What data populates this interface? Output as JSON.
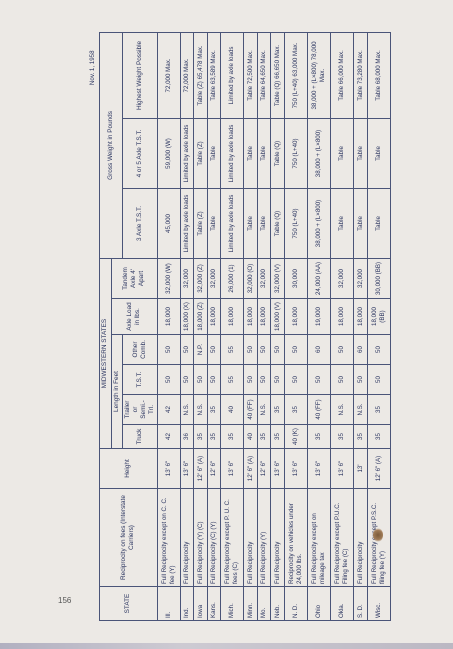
{
  "page_number": "156",
  "date": "Nov. 1, 1958",
  "headers": {
    "state": "STATE",
    "reciprocity": "Reciprocity on fees (Interstate Carriers)",
    "height": "Height",
    "section_title": "MIDWESTERN STATES",
    "length_group": "Length in Feet",
    "length_truck": "Truck",
    "length_trailer_semi": "Trailer or Semi.-Trl.",
    "length_tst": "T.S.T.",
    "length_other": "Other Comb.",
    "axle_load": "Axle Load in lbs.",
    "tandem": "Tandem Axle 4' Apart",
    "gross_group": "Gross Weight in Pounds",
    "gross_3axle": "3 Axle T.S.T.",
    "gross_4axle": "4 or 5 Axle T.S.T.",
    "gross_max": "Highest Weight Possible"
  },
  "rows": [
    {
      "state": "Ill.",
      "reciprocity": "Full Reciprocity except on C. C. fee (Y)",
      "height": "13' 6\"",
      "truck": "42",
      "trailer": "42",
      "tst": "50",
      "other": "50",
      "axle": "18,000",
      "tandem": "32,000 (W)",
      "g3": "45,000",
      "g4": "59,000 (W)",
      "gmax": "72,000 Max."
    },
    {
      "state": "Ind.",
      "reciprocity": "Full Reciprocity",
      "height": "13' 6\"",
      "truck": "36",
      "trailer": "N.S.",
      "tst": "50",
      "other": "50",
      "axle": "18,000 (X)",
      "tandem": "32,000",
      "g3": "Limited by axle loads",
      "g4": "Limited by axle loads",
      "gmax": "72,000 Max."
    },
    {
      "state": "Iowa",
      "reciprocity": "Full Reciprocity (Y) (C)",
      "height": "12' 6\" (A)",
      "truck": "35",
      "trailer": "N.S.",
      "tst": "50",
      "other": "N.P.",
      "axle": "18,000 (Z)",
      "tandem": "32,000 (Z)",
      "g3": "Table (Z)",
      "g4": "Table (Z)",
      "gmax": "Table (Z) 65,478 Max."
    },
    {
      "state": "Kans.",
      "reciprocity": "Full Reciprocity (C) (Y)",
      "height": "12' 6\"",
      "truck": "35",
      "trailer": "35",
      "tst": "50",
      "other": "50",
      "axle": "18,000",
      "tandem": "32,000",
      "g3": "Table",
      "g4": "Table",
      "gmax": "Table 63,589 Max."
    },
    {
      "state": "Mich.",
      "reciprocity": "Full Reciprocity except P. U. C. fees (C)",
      "height": "13' 6\"",
      "truck": "35",
      "trailer": "40",
      "tst": "55",
      "other": "55",
      "axle": "18,000",
      "tandem": "26,000 (1)",
      "g3": "Limited by axle loads",
      "g4": "Limited by axle loads",
      "gmax": "Limited by axle loads"
    },
    {
      "state": "Minn.",
      "reciprocity": "Full Reciprocity",
      "height": "12' 6\" (A)",
      "truck": "40",
      "trailer": "40 (FF)",
      "tst": "50",
      "other": "50",
      "axle": "18,000",
      "tandem": "32,000 (O)",
      "g3": "Table",
      "g4": "Table",
      "gmax": "Table 72,500 Max."
    },
    {
      "state": "Mo.",
      "reciprocity": "Full Reciprocity (Y)",
      "height": "12' 6\"",
      "truck": "35",
      "trailer": "N.S.",
      "tst": "50",
      "other": "50",
      "axle": "18,000",
      "tandem": "32,000",
      "g3": "Table",
      "g4": "Table",
      "gmax": "Table 64,650 Max."
    },
    {
      "state": "Neb.",
      "reciprocity": "Full Reciprocity",
      "height": "13' 6\"",
      "truck": "35",
      "trailer": "35",
      "tst": "50",
      "other": "50",
      "axle": "18,000 (V)",
      "tandem": "32,000 (V)",
      "g3": "Table (Q)",
      "g4": "Table (Q)",
      "gmax": "Table (Q) 66,650 Max."
    },
    {
      "state": "N. D.",
      "reciprocity": "Reciprocity on vehicles under 24,000 lbs.",
      "height": "13' 6\"",
      "truck": "40 (K)",
      "trailer": "35",
      "tst": "50",
      "other": "50",
      "axle": "18,000",
      "tandem": "30,000",
      "g3": "750 (L+40)",
      "g4": "750 (L+40)",
      "gmax": "750 (L+40) 63,000 Max."
    },
    {
      "state": "Ohio",
      "reciprocity": "Full Reciprocity except on mileage tax",
      "height": "13' 6\"",
      "truck": "35",
      "trailer": "40 (FF)",
      "tst": "50",
      "other": "60",
      "axle": "19,000",
      "tandem": "24,000 (AA)",
      "g3": "38,000 + (L×800)",
      "g4": "38,000 + (L×800)",
      "gmax": "38,000 + (L×800) 78,000 Max."
    },
    {
      "state": "Okla.",
      "reciprocity": "Full Reciprocity except P.U.C. Filing fee (C)",
      "height": "13' 6\"",
      "truck": "35",
      "trailer": "N.S.",
      "tst": "50",
      "other": "50",
      "axle": "18,000",
      "tandem": "32,000",
      "g3": "Table",
      "g4": "Table",
      "gmax": "Table 66,000 Max."
    },
    {
      "state": "S. D.",
      "reciprocity": "Full Reciprocity",
      "height": "13'",
      "truck": "35",
      "trailer": "N.S.",
      "tst": "50",
      "other": "60",
      "axle": "18,000",
      "tandem": "32,000",
      "g3": "Table",
      "g4": "Table",
      "gmax": "Table 73,280 Max."
    },
    {
      "state": "Wisc.",
      "reciprocity": "Full Reciprocity except P.S.C. filing fee (Y)",
      "height": "12' 6\" (A)",
      "truck": "35",
      "trailer": "35",
      "tst": "50",
      "other": "50",
      "axle": "18,000 (BB)",
      "tandem": "30,000 (BB)",
      "g3": "Table",
      "g4": "Table",
      "gmax": "Table 68,000 Max."
    }
  ]
}
